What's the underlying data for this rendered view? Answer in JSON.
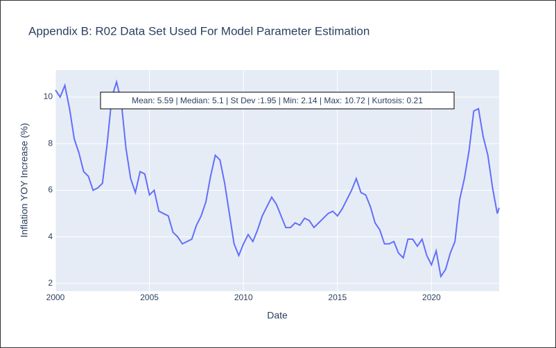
{
  "chart_data": {
    "type": "line",
    "title": "Appendix B: R02 Data Set Used For Model Parameter Estimation",
    "x_label": "Date",
    "y_label": "Inflation YOY Increase (%)",
    "annotation": "Mean: 5.59 | Median: 5.1 | St Dev :1.95 | Min: 2.14 | Max: 10.72 | Kurtosis: 0.21",
    "x": [
      2000,
      2000.25,
      2000.5,
      2000.75,
      2001,
      2001.25,
      2001.5,
      2001.75,
      2002,
      2002.25,
      2002.5,
      2002.75,
      2003,
      2003.25,
      2003.5,
      2003.75,
      2004,
      2004.25,
      2004.5,
      2004.75,
      2005,
      2005.25,
      2005.5,
      2005.75,
      2006,
      2006.25,
      2006.5,
      2006.75,
      2007,
      2007.25,
      2007.5,
      2007.75,
      2008,
      2008.25,
      2008.5,
      2008.75,
      2009,
      2009.25,
      2009.5,
      2009.75,
      2010,
      2010.25,
      2010.5,
      2010.75,
      2011,
      2011.25,
      2011.5,
      2011.75,
      2012,
      2012.25,
      2012.5,
      2012.75,
      2013,
      2013.25,
      2013.5,
      2013.75,
      2014,
      2014.25,
      2014.5,
      2014.75,
      2015,
      2015.25,
      2015.5,
      2015.75,
      2016,
      2016.25,
      2016.5,
      2016.75,
      2017,
      2017.25,
      2017.5,
      2017.75,
      2018,
      2018.25,
      2018.5,
      2018.75,
      2019,
      2019.25,
      2019.5,
      2019.75,
      2020,
      2020.25,
      2020.5,
      2020.75,
      2021,
      2021.25,
      2021.5,
      2021.75,
      2022,
      2022.25,
      2022.5,
      2022.75,
      2023,
      2023.25,
      2023.5,
      2023.6
    ],
    "series": [
      {
        "name": "Inflation",
        "color": "#636efa",
        "values": [
          10.3,
          10.0,
          10.5,
          9.5,
          8.2,
          7.6,
          6.8,
          6.6,
          6.0,
          6.1,
          6.3,
          8.0,
          10.0,
          10.65,
          9.8,
          7.8,
          6.5,
          5.9,
          6.8,
          6.7,
          5.8,
          6.0,
          5.1,
          5.0,
          4.9,
          4.2,
          4.0,
          3.7,
          3.8,
          3.9,
          4.5,
          4.9,
          5.5,
          6.6,
          7.5,
          7.3,
          6.3,
          5.0,
          3.7,
          3.2,
          3.7,
          4.1,
          3.8,
          4.3,
          4.9,
          5.3,
          5.7,
          5.4,
          4.9,
          4.4,
          4.4,
          4.6,
          4.5,
          4.8,
          4.7,
          4.4,
          4.6,
          4.8,
          5.0,
          5.1,
          4.9,
          5.2,
          5.6,
          6.0,
          6.5,
          5.9,
          5.8,
          5.3,
          4.6,
          4.3,
          3.7,
          3.7,
          3.8,
          3.3,
          3.1,
          3.9,
          3.9,
          3.6,
          3.9,
          3.2,
          2.8,
          3.4,
          2.3,
          2.6,
          3.3,
          3.8,
          5.6,
          6.5,
          7.7,
          9.4,
          9.5,
          8.3,
          7.5,
          6.1,
          5.0,
          5.25
        ]
      }
    ],
    "xlim": [
      2000,
      2023.6
    ],
    "xticks": [
      2000,
      2005,
      2010,
      2015,
      2020
    ],
    "ylim": [
      1.67,
      11.16
    ],
    "yticks": [
      2,
      4,
      6,
      8,
      10
    ],
    "grid": true
  }
}
